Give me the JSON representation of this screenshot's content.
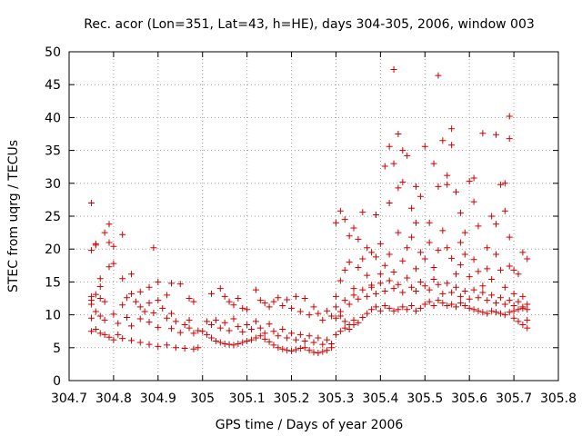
{
  "chart_data": {
    "type": "scatter",
    "title": "Rec. acor (Lon=351, Lat=43, h=HE), days 304-305, 2006, window 003",
    "xlabel": "GPS time / Days of year 2006",
    "ylabel": "STEC from uqrg / TECUs",
    "xlim": [
      304.7,
      305.8
    ],
    "ylim": [
      0,
      50
    ],
    "xticks": [
      "304.7",
      "304.8",
      "304.9",
      "305",
      "305.1",
      "305.2",
      "305.3",
      "305.4",
      "305.5",
      "305.6",
      "305.7",
      "305.8"
    ],
    "yticks": [
      "0",
      "5",
      "10",
      "15",
      "20",
      "25",
      "30",
      "35",
      "40",
      "45",
      "50"
    ],
    "grid": true,
    "marker": "plus",
    "color": "#cc0000",
    "points": [
      [
        304.75,
        27.0
      ],
      [
        304.75,
        19.8
      ],
      [
        304.76,
        20.8
      ],
      [
        304.76,
        20.6
      ],
      [
        304.78,
        22.5
      ],
      [
        304.79,
        23.8
      ],
      [
        304.79,
        21.0
      ],
      [
        304.8,
        20.4
      ],
      [
        304.8,
        17.8
      ],
      [
        304.79,
        17.3
      ],
      [
        304.82,
        22.2
      ],
      [
        304.82,
        15.5
      ],
      [
        304.84,
        16.2
      ],
      [
        304.77,
        15.5
      ],
      [
        304.77,
        14.3
      ],
      [
        304.89,
        20.2
      ],
      [
        304.75,
        12.8
      ],
      [
        304.75,
        12.2
      ],
      [
        304.75,
        11.6
      ],
      [
        304.76,
        13.1
      ],
      [
        304.77,
        12.5
      ],
      [
        304.78,
        12.0
      ],
      [
        304.75,
        9.5
      ],
      [
        304.76,
        10.5
      ],
      [
        304.77,
        9.8
      ],
      [
        304.78,
        9.2
      ],
      [
        304.8,
        10.1
      ],
      [
        304.81,
        8.7
      ],
      [
        304.83,
        9.6
      ],
      [
        304.84,
        8.3
      ],
      [
        304.86,
        9.4
      ],
      [
        304.88,
        8.9
      ],
      [
        304.9,
        8.1
      ],
      [
        304.93,
        7.9
      ],
      [
        304.95,
        7.3
      ],
      [
        304.97,
        8.0
      ],
      [
        304.99,
        7.6
      ],
      [
        304.75,
        7.5
      ],
      [
        304.76,
        7.8
      ],
      [
        304.77,
        7.2
      ],
      [
        304.78,
        7.0
      ],
      [
        304.79,
        6.6
      ],
      [
        304.8,
        6.2
      ],
      [
        304.81,
        7.0
      ],
      [
        304.82,
        6.4
      ],
      [
        304.84,
        6.1
      ],
      [
        304.86,
        5.8
      ],
      [
        304.88,
        5.5
      ],
      [
        304.9,
        5.2
      ],
      [
        304.92,
        5.4
      ],
      [
        304.94,
        5.0
      ],
      [
        304.96,
        4.9
      ],
      [
        304.98,
        4.8
      ],
      [
        304.99,
        5.0
      ],
      [
        304.82,
        11.5
      ],
      [
        304.83,
        12.6
      ],
      [
        304.84,
        13.2
      ],
      [
        304.85,
        12.0
      ],
      [
        304.86,
        11.2
      ],
      [
        304.87,
        10.5
      ],
      [
        304.88,
        11.8
      ],
      [
        304.89,
        10.3
      ],
      [
        304.9,
        12.2
      ],
      [
        304.91,
        11.0
      ],
      [
        304.92,
        9.5
      ],
      [
        304.93,
        10.2
      ],
      [
        304.94,
        9.0
      ],
      [
        304.96,
        8.5
      ],
      [
        304.97,
        9.2
      ],
      [
        304.98,
        7.2
      ],
      [
        304.9,
        15.0
      ],
      [
        304.93,
        14.8
      ],
      [
        304.95,
        14.7
      ],
      [
        304.97,
        12.5
      ],
      [
        304.98,
        12.0
      ],
      [
        304.92,
        13.0
      ],
      [
        304.88,
        14.2
      ],
      [
        304.86,
        13.5
      ],
      [
        305.0,
        7.5
      ],
      [
        305.01,
        7.0
      ],
      [
        305.02,
        6.5
      ],
      [
        305.03,
        6.0
      ],
      [
        305.04,
        5.8
      ],
      [
        305.05,
        5.6
      ],
      [
        305.06,
        5.5
      ],
      [
        305.07,
        5.4
      ],
      [
        305.08,
        5.6
      ],
      [
        305.09,
        5.8
      ],
      [
        305.1,
        6.0
      ],
      [
        305.11,
        6.2
      ],
      [
        305.12,
        6.5
      ],
      [
        305.13,
        6.8
      ],
      [
        305.14,
        6.3
      ],
      [
        305.15,
        5.9
      ],
      [
        305.16,
        5.4
      ],
      [
        305.17,
        5.0
      ],
      [
        305.18,
        4.8
      ],
      [
        305.19,
        4.6
      ],
      [
        305.2,
        4.5
      ],
      [
        305.21,
        4.7
      ],
      [
        305.22,
        4.9
      ],
      [
        305.23,
        5.0
      ],
      [
        305.24,
        4.6
      ],
      [
        305.25,
        4.3
      ],
      [
        305.26,
        4.2
      ],
      [
        305.27,
        4.4
      ],
      [
        305.28,
        4.6
      ],
      [
        305.29,
        5.0
      ],
      [
        305.01,
        9.0
      ],
      [
        305.02,
        8.5
      ],
      [
        305.03,
        9.2
      ],
      [
        305.04,
        8.0
      ],
      [
        305.05,
        8.8
      ],
      [
        305.06,
        7.6
      ],
      [
        305.07,
        9.4
      ],
      [
        305.08,
        8.2
      ],
      [
        305.09,
        7.4
      ],
      [
        305.1,
        8.5
      ],
      [
        305.11,
        7.8
      ],
      [
        305.12,
        9.0
      ],
      [
        305.13,
        8.0
      ],
      [
        305.14,
        7.2
      ],
      [
        305.15,
        8.6
      ],
      [
        305.16,
        7.5
      ],
      [
        305.17,
        6.8
      ],
      [
        305.18,
        7.8
      ],
      [
        305.19,
        6.5
      ],
      [
        305.2,
        7.2
      ],
      [
        305.21,
        6.2
      ],
      [
        305.22,
        7.0
      ],
      [
        305.23,
        6.0
      ],
      [
        305.24,
        6.8
      ],
      [
        305.25,
        5.8
      ],
      [
        305.26,
        6.5
      ],
      [
        305.27,
        5.5
      ],
      [
        305.28,
        6.2
      ],
      [
        305.29,
        5.6
      ],
      [
        305.02,
        13.2
      ],
      [
        305.04,
        14.0
      ],
      [
        305.05,
        12.8
      ],
      [
        305.06,
        12.0
      ],
      [
        305.07,
        11.5
      ],
      [
        305.08,
        12.5
      ],
      [
        305.09,
        11.0
      ],
      [
        305.1,
        10.8
      ],
      [
        305.12,
        13.8
      ],
      [
        305.13,
        12.2
      ],
      [
        305.14,
        11.8
      ],
      [
        305.15,
        11.2
      ],
      [
        305.16,
        12.0
      ],
      [
        305.17,
        12.6
      ],
      [
        305.18,
        11.4
      ],
      [
        305.19,
        12.3
      ],
      [
        305.2,
        11.0
      ],
      [
        305.21,
        12.8
      ],
      [
        305.22,
        10.5
      ],
      [
        305.23,
        12.5
      ],
      [
        305.24,
        10.0
      ],
      [
        305.25,
        11.2
      ],
      [
        305.26,
        10.2
      ],
      [
        305.27,
        9.2
      ],
      [
        305.28,
        10.6
      ],
      [
        305.29,
        9.8
      ],
      [
        305.3,
        24.0
      ],
      [
        305.31,
        25.8
      ],
      [
        305.32,
        24.5
      ],
      [
        305.33,
        22.0
      ],
      [
        305.34,
        23.2
      ],
      [
        305.35,
        21.5
      ],
      [
        305.36,
        25.6
      ],
      [
        305.37,
        20.2
      ],
      [
        305.38,
        19.5
      ],
      [
        305.39,
        25.2
      ],
      [
        305.4,
        20.8
      ],
      [
        305.41,
        32.6
      ],
      [
        305.42,
        27.0
      ],
      [
        305.42,
        35.6
      ],
      [
        305.43,
        33.0
      ],
      [
        305.43,
        47.3
      ],
      [
        305.44,
        37.5
      ],
      [
        305.44,
        29.3
      ],
      [
        305.45,
        35.0
      ],
      [
        305.45,
        30.2
      ],
      [
        305.46,
        34.2
      ],
      [
        305.47,
        26.2
      ],
      [
        305.48,
        24.0
      ],
      [
        305.48,
        29.5
      ],
      [
        305.49,
        28.0
      ],
      [
        305.5,
        35.6
      ],
      [
        305.51,
        24.0
      ],
      [
        305.52,
        33.0
      ],
      [
        305.53,
        29.5
      ],
      [
        305.53,
        46.4
      ],
      [
        305.54,
        36.5
      ],
      [
        305.55,
        31.2
      ],
      [
        305.55,
        29.8
      ],
      [
        305.56,
        38.3
      ],
      [
        305.56,
        35.8
      ],
      [
        305.57,
        28.7
      ],
      [
        305.58,
        25.5
      ],
      [
        305.58,
        21.0
      ],
      [
        305.59,
        22.5
      ],
      [
        305.6,
        30.3
      ],
      [
        305.61,
        30.8
      ],
      [
        305.61,
        27.2
      ],
      [
        305.62,
        23.5
      ],
      [
        305.63,
        37.6
      ],
      [
        305.64,
        20.2
      ],
      [
        305.65,
        25.0
      ],
      [
        305.66,
        37.4
      ],
      [
        305.66,
        23.8
      ],
      [
        305.67,
        29.8
      ],
      [
        305.68,
        25.8
      ],
      [
        305.68,
        30.0
      ],
      [
        305.69,
        36.8
      ],
      [
        305.69,
        40.2
      ],
      [
        305.69,
        21.8
      ],
      [
        305.7,
        16.8
      ],
      [
        305.71,
        16.2
      ],
      [
        305.72,
        19.5
      ],
      [
        305.73,
        18.5
      ],
      [
        305.3,
        12.8
      ],
      [
        305.31,
        15.2
      ],
      [
        305.32,
        16.8
      ],
      [
        305.33,
        18.0
      ],
      [
        305.34,
        14.0
      ],
      [
        305.35,
        17.2
      ],
      [
        305.36,
        18.5
      ],
      [
        305.37,
        16.0
      ],
      [
        305.38,
        14.5
      ],
      [
        305.39,
        18.8
      ],
      [
        305.4,
        16.2
      ],
      [
        305.41,
        17.5
      ],
      [
        305.42,
        19.2
      ],
      [
        305.43,
        16.5
      ],
      [
        305.44,
        22.5
      ],
      [
        305.45,
        18.2
      ],
      [
        305.46,
        20.2
      ],
      [
        305.47,
        21.8
      ],
      [
        305.48,
        17.0
      ],
      [
        305.49,
        19.5
      ],
      [
        305.5,
        18.5
      ],
      [
        305.51,
        21.0
      ],
      [
        305.52,
        17.2
      ],
      [
        305.53,
        19.8
      ],
      [
        305.54,
        22.8
      ],
      [
        305.55,
        20.2
      ],
      [
        305.56,
        18.6
      ],
      [
        305.57,
        16.2
      ],
      [
        305.58,
        17.6
      ],
      [
        305.59,
        19.2
      ],
      [
        305.6,
        15.8
      ],
      [
        305.61,
        18.4
      ],
      [
        305.62,
        16.6
      ],
      [
        305.63,
        14.4
      ],
      [
        305.64,
        17.0
      ],
      [
        305.65,
        15.4
      ],
      [
        305.66,
        19.2
      ],
      [
        305.67,
        16.8
      ],
      [
        305.68,
        14.2
      ],
      [
        305.69,
        17.4
      ],
      [
        305.3,
        11.2
      ],
      [
        305.31,
        10.5
      ],
      [
        305.32,
        12.2
      ],
      [
        305.33,
        11.6
      ],
      [
        305.34,
        13.0
      ],
      [
        305.35,
        12.4
      ],
      [
        305.36,
        13.8
      ],
      [
        305.37,
        12.8
      ],
      [
        305.38,
        14.2
      ],
      [
        305.39,
        13.2
      ],
      [
        305.4,
        14.8
      ],
      [
        305.41,
        13.6
      ],
      [
        305.42,
        15.2
      ],
      [
        305.43,
        14.0
      ],
      [
        305.44,
        14.6
      ],
      [
        305.45,
        13.4
      ],
      [
        305.46,
        15.6
      ],
      [
        305.47,
        14.2
      ],
      [
        305.48,
        13.6
      ],
      [
        305.49,
        15.0
      ],
      [
        305.5,
        14.4
      ],
      [
        305.51,
        13.8
      ],
      [
        305.52,
        15.4
      ],
      [
        305.53,
        14.6
      ],
      [
        305.54,
        13.2
      ],
      [
        305.55,
        14.8
      ],
      [
        305.56,
        13.4
      ],
      [
        305.57,
        14.2
      ],
      [
        305.58,
        12.8
      ],
      [
        305.59,
        13.6
      ],
      [
        305.6,
        12.4
      ],
      [
        305.61,
        13.8
      ],
      [
        305.62,
        12.6
      ],
      [
        305.63,
        13.4
      ],
      [
        305.64,
        12.2
      ],
      [
        305.65,
        13.0
      ],
      [
        305.66,
        11.8
      ],
      [
        305.67,
        12.6
      ],
      [
        305.68,
        11.6
      ],
      [
        305.69,
        12.2
      ],
      [
        305.7,
        11.4
      ],
      [
        305.71,
        12.0
      ],
      [
        305.72,
        11.2
      ],
      [
        305.73,
        11.6
      ],
      [
        305.3,
        9.5
      ],
      [
        305.31,
        9.8
      ],
      [
        305.32,
        9.0
      ],
      [
        305.33,
        8.5
      ],
      [
        305.34,
        9.2
      ],
      [
        305.35,
        8.8
      ],
      [
        305.36,
        9.6
      ],
      [
        305.37,
        10.2
      ],
      [
        305.38,
        10.8
      ],
      [
        305.39,
        11.2
      ],
      [
        305.4,
        10.6
      ],
      [
        305.41,
        11.4
      ],
      [
        305.42,
        11.0
      ],
      [
        305.43,
        10.6
      ],
      [
        305.44,
        10.8
      ],
      [
        305.45,
        11.2
      ],
      [
        305.46,
        10.8
      ],
      [
        305.47,
        11.4
      ],
      [
        305.48,
        10.6
      ],
      [
        305.49,
        11.0
      ],
      [
        305.5,
        11.6
      ],
      [
        305.51,
        12.0
      ],
      [
        305.52,
        11.4
      ],
      [
        305.53,
        12.2
      ],
      [
        305.54,
        11.8
      ],
      [
        305.55,
        11.4
      ],
      [
        305.56,
        11.6
      ],
      [
        305.57,
        11.2
      ],
      [
        305.58,
        11.8
      ],
      [
        305.59,
        11.4
      ],
      [
        305.6,
        11.0
      ],
      [
        305.61,
        10.8
      ],
      [
        305.62,
        10.6
      ],
      [
        305.63,
        10.4
      ],
      [
        305.64,
        10.2
      ],
      [
        305.65,
        10.6
      ],
      [
        305.66,
        10.4
      ],
      [
        305.67,
        10.2
      ],
      [
        305.68,
        10.0
      ],
      [
        305.69,
        10.4
      ],
      [
        305.7,
        10.6
      ],
      [
        305.71,
        10.8
      ],
      [
        305.72,
        11.0
      ],
      [
        305.73,
        10.8
      ],
      [
        305.3,
        7.0
      ],
      [
        305.31,
        7.5
      ],
      [
        305.32,
        8.0
      ],
      [
        305.33,
        7.8
      ],
      [
        305.34,
        8.5
      ],
      [
        305.7,
        9.5
      ],
      [
        305.71,
        9.0
      ],
      [
        305.72,
        8.5
      ],
      [
        305.73,
        9.2
      ],
      [
        305.73,
        8.0
      ],
      [
        305.72,
        12.8
      ],
      [
        305.7,
        13.2
      ]
    ]
  }
}
